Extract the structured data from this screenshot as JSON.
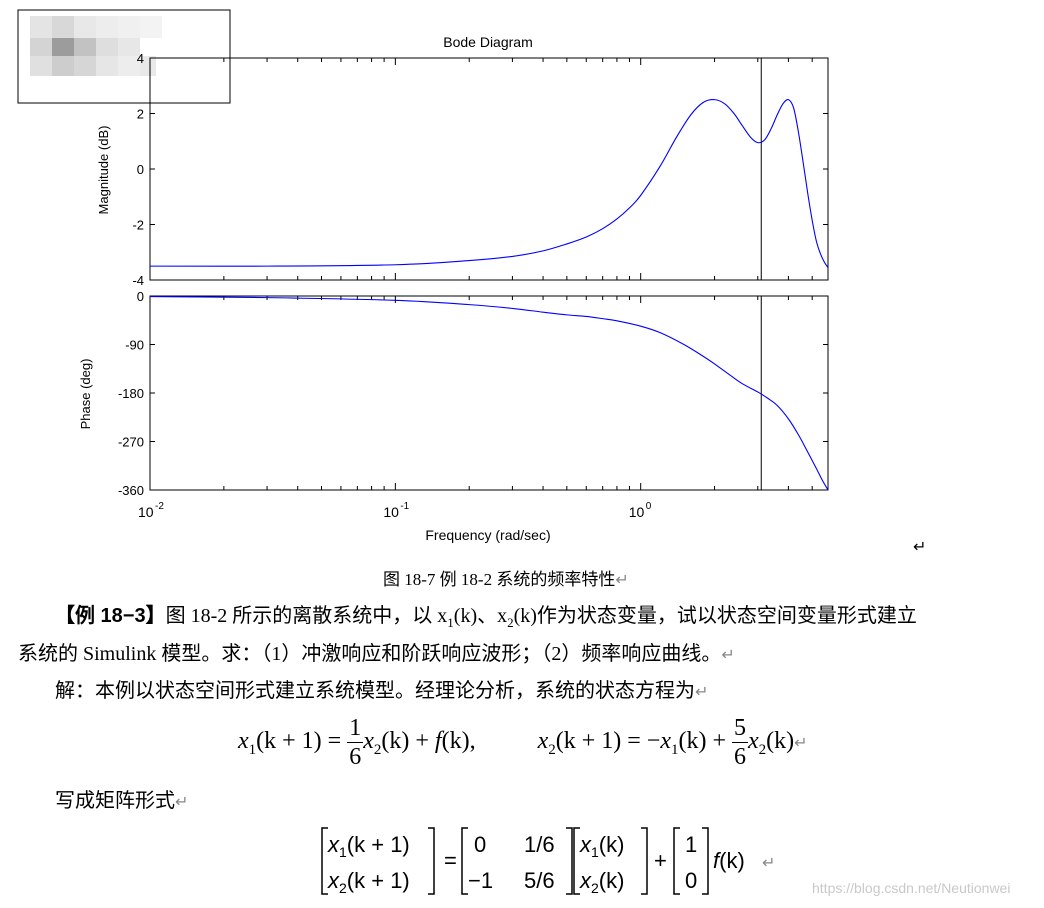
{
  "chart_data": [
    {
      "type": "line",
      "title": "Bode Diagram",
      "xlabel": "Frequency  (rad/sec)",
      "ylabel": "Magnitude (dB)",
      "xscale": "log",
      "xlim": [
        0.01,
        5.8
      ],
      "ylim": [
        -4,
        4
      ],
      "yticks": [
        "4",
        "2",
        "0",
        "-2",
        "-4"
      ],
      "series": [
        {
          "color": "#0000ff",
          "x": [
            0.01,
            0.03,
            0.1,
            0.2,
            0.3,
            0.4,
            0.5,
            0.6,
            0.7,
            0.8,
            0.9,
            1.0,
            1.2,
            1.4,
            1.6,
            1.8,
            2.0,
            2.2,
            2.4,
            2.6,
            2.8,
            3.0,
            3.2,
            3.4,
            3.6,
            3.8,
            4.0,
            4.2,
            4.4,
            4.6,
            4.8,
            5.0,
            5.2,
            5.4,
            5.6,
            5.8
          ],
          "y": [
            -3.5,
            -3.5,
            -3.45,
            -3.3,
            -3.15,
            -2.95,
            -2.7,
            -2.45,
            -2.15,
            -1.8,
            -1.4,
            -0.95,
            0.1,
            1.15,
            1.95,
            2.4,
            2.5,
            2.35,
            2.0,
            1.55,
            1.15,
            0.95,
            1.05,
            1.45,
            1.95,
            2.35,
            2.5,
            2.2,
            1.3,
            0.2,
            -0.9,
            -1.85,
            -2.6,
            -3.05,
            -3.35,
            -3.55
          ]
        }
      ],
      "marker_line_x": 3.1
    },
    {
      "type": "line",
      "xlabel": "Frequency  (rad/sec)",
      "ylabel": "Phase (deg)",
      "xscale": "log",
      "xlim": [
        0.01,
        5.8
      ],
      "ylim": [
        -360,
        0
      ],
      "yticks": [
        "0",
        "-90",
        "-180",
        "-270",
        "-360"
      ],
      "xticks": [
        "10",
        "10",
        "10"
      ],
      "xtick_exps": [
        "-2",
        "-1",
        "0"
      ],
      "series": [
        {
          "color": "#0000ff",
          "x": [
            0.01,
            0.03,
            0.1,
            0.2,
            0.3,
            0.4,
            0.5,
            0.6,
            0.7,
            0.8,
            1.0,
            1.2,
            1.5,
            1.8,
            2.0,
            2.3,
            2.6,
            3.0,
            3.3,
            3.6,
            4.0,
            4.4,
            4.8,
            5.2,
            5.5,
            5.8
          ],
          "y": [
            -1,
            -3,
            -8,
            -16,
            -23,
            -30,
            -35,
            -38,
            -42,
            -46,
            -56,
            -68,
            -90,
            -112,
            -126,
            -146,
            -163,
            -178,
            -190,
            -203,
            -228,
            -258,
            -290,
            -320,
            -342,
            -360
          ]
        }
      ],
      "marker_line_x": 3.1
    }
  ],
  "doc": {
    "caption": "图 18-7    例 18-2 系统的频率特性",
    "example_label": "【例 18−3】",
    "p1_a": "图 18-2 所示的离散系统中，以 x",
    "p1_sub1": "1",
    "p1_b": "(k)、x",
    "p1_sub2": "2",
    "p1_c": "(k)作为状态变量，试以状态空间变量形式建立",
    "p2": "系统的 Simulink 模型。求：（1）冲激响应和阶跃响应波形；（2）频率响应曲线。",
    "p3": "解：本例以状态空间形式建立系统模型。经理论分析，系统的状态方程为",
    "p4": "写成矩阵形式",
    "return_mark": "↵",
    "watermark": "https://blog.csdn.net/Neutionwei",
    "eq1": {
      "lhs_var": "x",
      "lhs_sub": "1",
      "lhs_arg": "(k + 1) =",
      "num": "1",
      "den": "6",
      "mid_var": "x",
      "mid_sub": "2",
      "mid_arg": "(k) +",
      "f": "f",
      "f_arg": "(k),"
    },
    "eq2": {
      "lhs_var": "x",
      "lhs_sub": "2",
      "lhs_arg": "(k + 1) = −",
      "t1_var": "x",
      "t1_sub": "1",
      "t1_arg": "(k) +",
      "num": "5",
      "den": "6",
      "t2_var": "x",
      "t2_sub": "2",
      "t2_arg": "(k)"
    },
    "matrix": {
      "lhs": [
        [
          "x",
          "1",
          "(k + 1)"
        ],
        [
          "x",
          "2",
          "(k + 1)"
        ]
      ],
      "A": [
        [
          "0",
          "1/6"
        ],
        [
          "−1",
          "5/6"
        ]
      ],
      "x": [
        [
          "x",
          "1",
          "(k)"
        ],
        [
          "x",
          "2",
          "(k)"
        ]
      ],
      "plus": "+",
      "eq": "=",
      "B": [
        "1",
        "0"
      ],
      "f": "f",
      "f_arg": "(k)"
    }
  }
}
